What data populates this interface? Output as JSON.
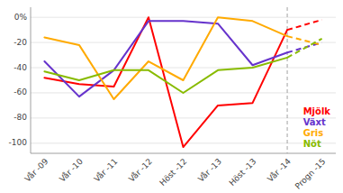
{
  "chart_data": {
    "type": "line",
    "categories": [
      "Vår -09",
      "Vår -10",
      "Vår -11",
      "Vår -12",
      "Höst -12",
      "Vår -13",
      "Höst -13",
      "Vår -14",
      "Progn -15"
    ],
    "series": [
      {
        "name": "Mjölk",
        "color": "#ff0000",
        "line_style": "solid",
        "values": [
          -48,
          -53,
          -55,
          0,
          -103,
          -70,
          -68,
          -10,
          null
        ]
      },
      {
        "name": "Växt",
        "color": "#6633cc",
        "line_style": "solid",
        "values": [
          -35,
          -63,
          -42,
          -3,
          -3,
          -5,
          -38,
          -28,
          null
        ]
      },
      {
        "name": "Gris",
        "color": "#ffaa00",
        "line_style": "solid",
        "values": [
          -16,
          -22,
          -65,
          -35,
          -50,
          0,
          -3,
          -15,
          null
        ]
      },
      {
        "name": "Nöt",
        "color": "#88bb00",
        "line_style": "solid",
        "values": [
          -43,
          -50,
          -42,
          -42,
          -60,
          -42,
          -40,
          -32,
          null
        ]
      },
      {
        "color": "#ff0000",
        "line_style": "dashed",
        "values": [
          null,
          null,
          null,
          null,
          null,
          null,
          null,
          -10,
          -2
        ]
      },
      {
        "color": "#6633cc",
        "line_style": "dashed",
        "values": [
          null,
          null,
          null,
          null,
          null,
          null,
          null,
          -28,
          -20
        ]
      },
      {
        "color": "#ffaa00",
        "line_style": "dashed",
        "values": [
          null,
          null,
          null,
          null,
          null,
          null,
          null,
          -15,
          -22
        ]
      },
      {
        "color": "#88bb00",
        "line_style": "dashed",
        "values": [
          null,
          null,
          null,
          null,
          null,
          null,
          null,
          -32,
          -17
        ]
      }
    ],
    "ylim": [
      -108,
      8
    ],
    "yticks": [
      {
        "value": 0,
        "label": "0%"
      },
      -20,
      -40,
      -60,
      -80,
      -100
    ],
    "grid": true,
    "legend": "lower right"
  }
}
